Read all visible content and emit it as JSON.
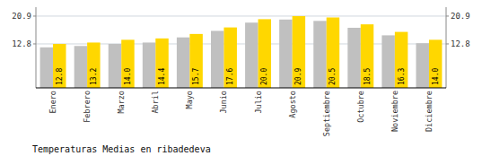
{
  "chart_data": {
    "type": "bar",
    "title": "Temperaturas Medias en ribadedeva",
    "categories": [
      "Enero",
      "Febrero",
      "Marzo",
      "Abril",
      "Mayo",
      "Junio",
      "Julio",
      "Agosto",
      "Septiembre",
      "Octubre",
      "Noviembre",
      "Diciembre"
    ],
    "series": [
      {
        "color": "#C0C0C0",
        "values": [
          11.8,
          12.2,
          12.8,
          13.2,
          14.7,
          16.6,
          19.0,
          19.9,
          19.5,
          17.5,
          15.3,
          13.0
        ]
      },
      {
        "color": "#FFD700",
        "values": [
          12.8,
          13.2,
          14.0,
          14.4,
          15.7,
          17.6,
          20.0,
          20.9,
          20.5,
          18.5,
          16.3,
          14.0
        ],
        "value_labels": [
          "12.8",
          "13.2",
          "14.0",
          "14.4",
          "15.7",
          "17.6",
          "20.0",
          "20.9",
          "20.5",
          "18.5",
          "16.3",
          "14.0"
        ],
        "data_labels": true
      }
    ],
    "ylim": [
      0,
      23.5
    ],
    "yticks": [
      12.8,
      20.9
    ],
    "y2lim": [
      0,
      23.5
    ],
    "y2ticks": [
      12.8,
      20.9
    ],
    "grid": true
  }
}
